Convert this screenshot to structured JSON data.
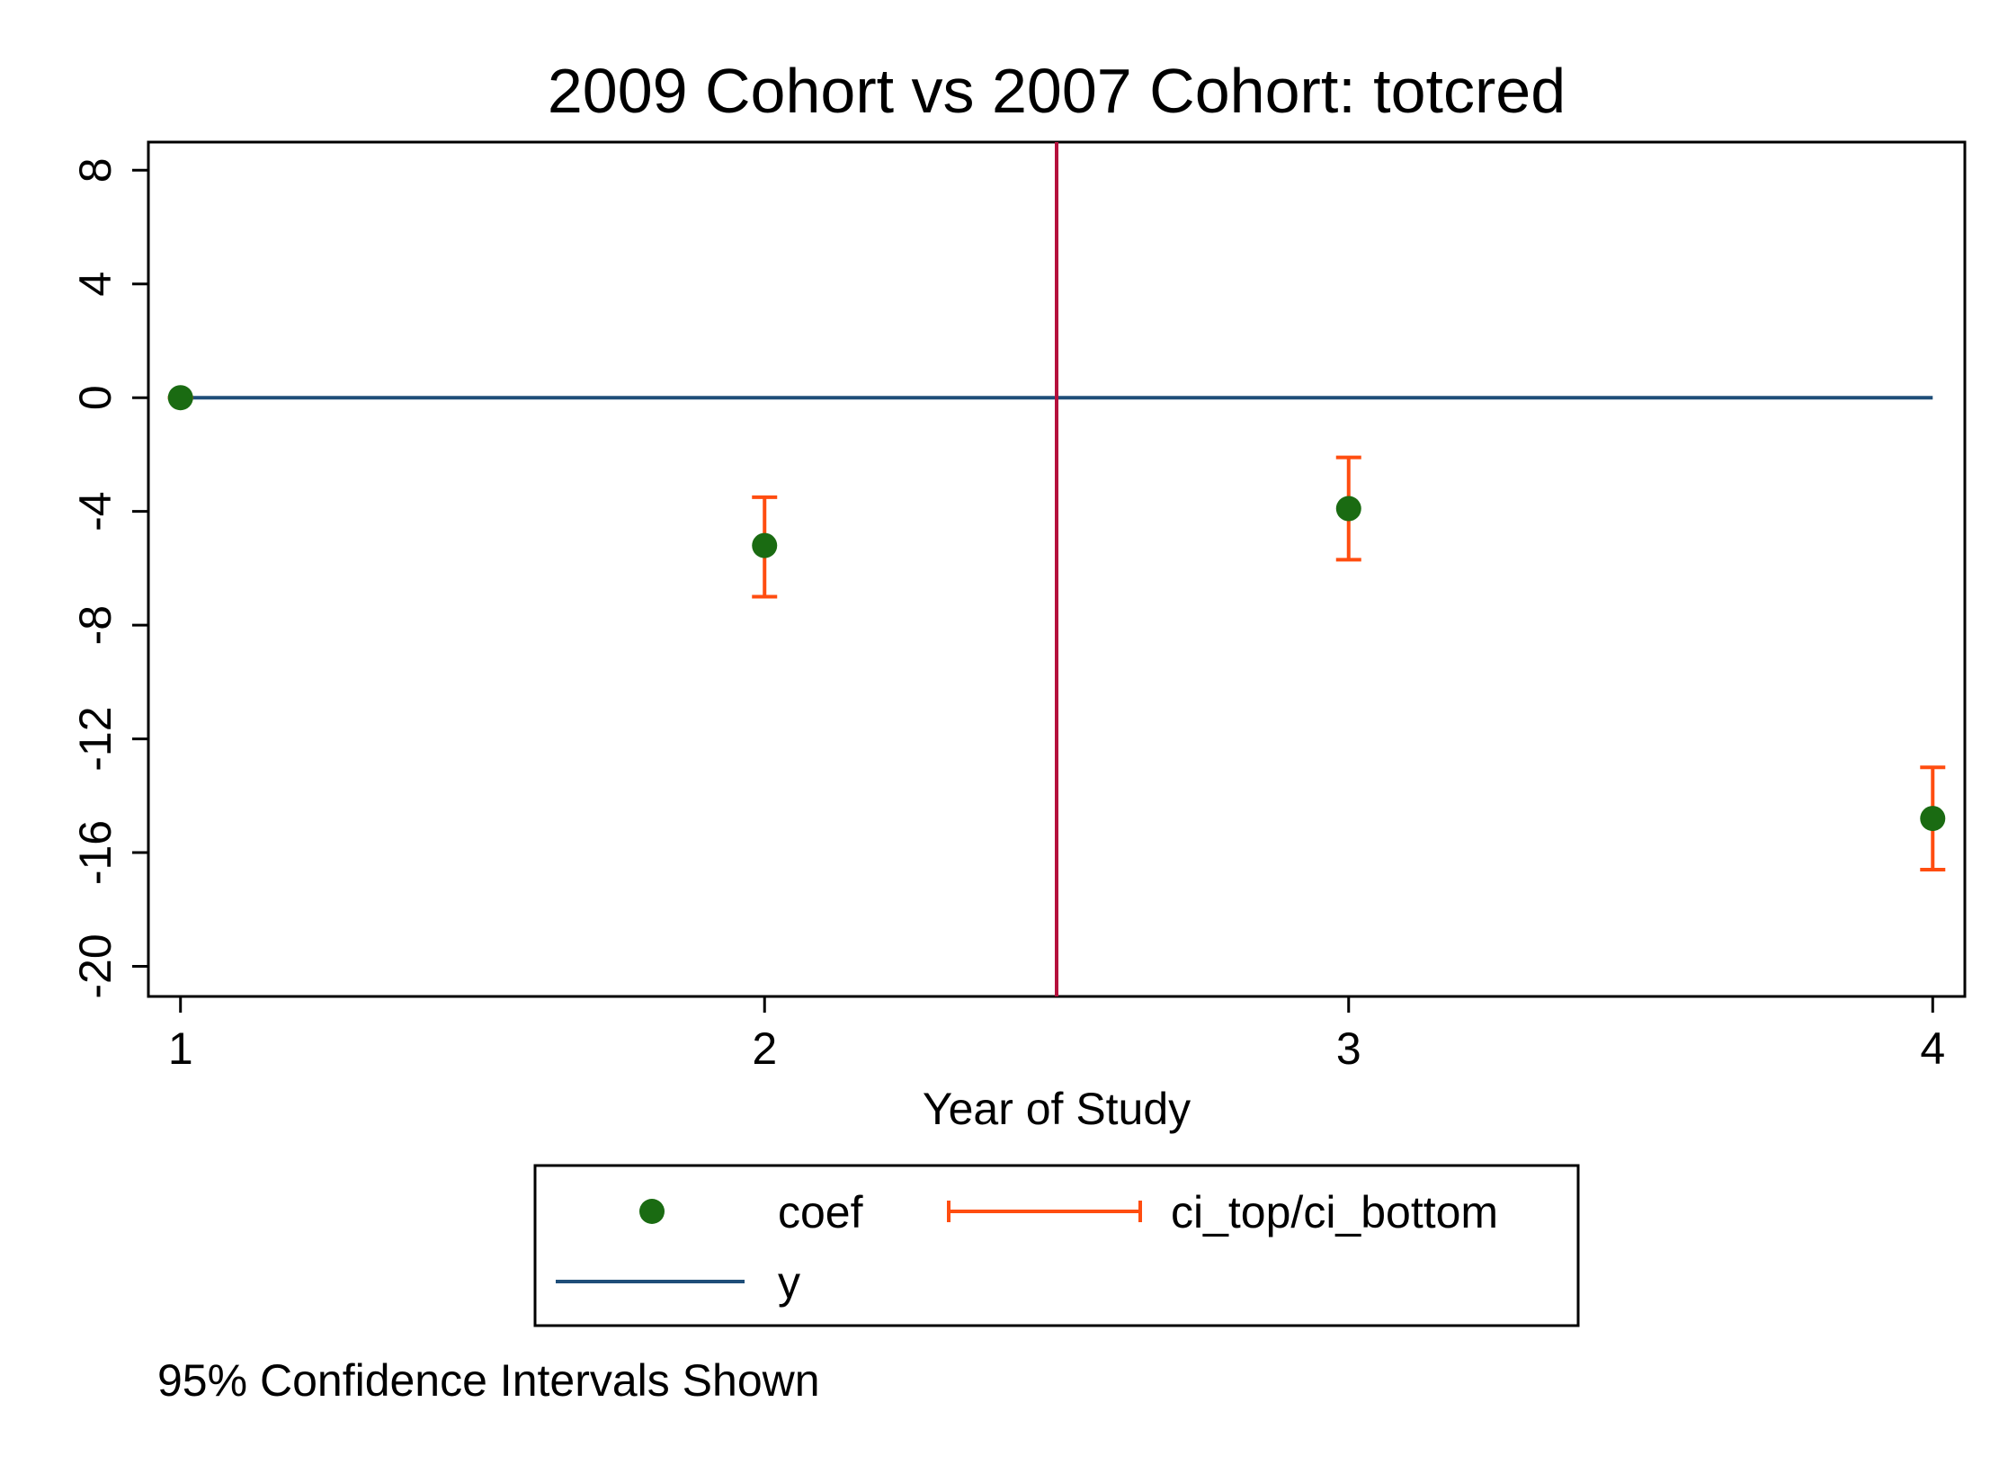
{
  "chart_data": {
    "type": "scatter",
    "title": "2009 Cohort vs 2007 Cohort: totcred",
    "xlabel": "Year of Study",
    "ylabel": "",
    "xlim": [
      0.945,
      4.055
    ],
    "ylim": [
      -21.06,
      8.99
    ],
    "xticks": [
      1,
      2,
      3,
      4
    ],
    "yticks": [
      8,
      4,
      0,
      -4,
      -8,
      -12,
      -16,
      -20
    ],
    "grid": false,
    "vline": {
      "x": 2.5,
      "color": "#b5103c"
    },
    "series": [
      {
        "name": "coef",
        "kind": "points",
        "color": "#1a6b12",
        "x": [
          1,
          2,
          3,
          4
        ],
        "y": [
          0,
          -5.2,
          -3.9,
          -14.8
        ]
      },
      {
        "name": "ci_top/ci_bottom",
        "kind": "errorbars",
        "color": "#ff4d10",
        "x": [
          1,
          2,
          3,
          4
        ],
        "top": [
          0,
          -3.5,
          -2.1,
          -13.0
        ],
        "bottom": [
          0,
          -7.0,
          -5.7,
          -16.6
        ]
      },
      {
        "name": "y",
        "kind": "line",
        "color": "#1f4e79",
        "x": [
          1,
          4
        ],
        "y": [
          0,
          0
        ]
      }
    ],
    "legend": {
      "position": "bottom",
      "entries": [
        "coef",
        "ci_top/ci_bottom",
        "y"
      ]
    },
    "note": "95% Confidence Intervals Shown"
  }
}
